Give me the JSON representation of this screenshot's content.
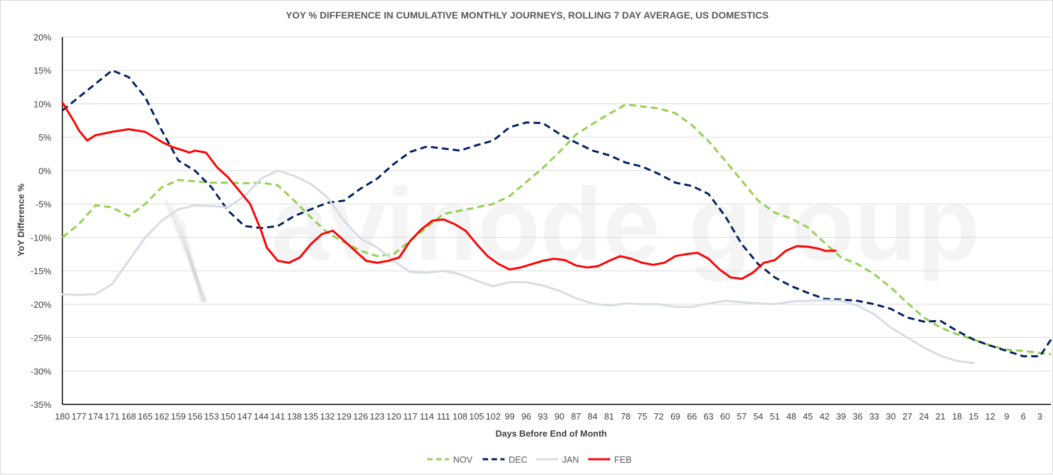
{
  "chart_data": {
    "type": "line",
    "title": "YOY % DIFFERENCE  IN CUMULATIVE MONTHLY JOURNEYS, ROLLING 7 DAY AVERAGE, US DOMESTICS",
    "xlabel": "Days Before End of Month",
    "ylabel": "YoY Difference %",
    "xlim": [
      180,
      1
    ],
    "ylim": [
      -35,
      20
    ],
    "y_ticks": [
      20,
      15,
      10,
      5,
      0,
      -5,
      -10,
      -15,
      -20,
      -25,
      -30,
      -35
    ],
    "y_tick_labels": [
      "20%",
      "15%",
      "10%",
      "5%",
      "0%",
      "-5%",
      "-10%",
      "-15%",
      "-20%",
      "-25%",
      "-30%",
      "-35%"
    ],
    "x_tick_labels": [
      "180",
      "177",
      "174",
      "171",
      "168",
      "165",
      "162",
      "159",
      "156",
      "153",
      "150",
      "147",
      "144",
      "141",
      "138",
      "135",
      "132",
      "129",
      "126",
      "123",
      "120",
      "117",
      "114",
      "111",
      "108",
      "105",
      "102",
      "99",
      "96",
      "93",
      "90",
      "87",
      "84",
      "81",
      "78",
      "75",
      "72",
      "69",
      "66",
      "63",
      "60",
      "57",
      "54",
      "51",
      "48",
      "45",
      "42",
      "39",
      "36",
      "33",
      "30",
      "27",
      "24",
      "21",
      "18",
      "15",
      "12",
      "9",
      "6",
      "3"
    ],
    "grid": "horizontal",
    "legend_position": "bottom",
    "watermark": "avinode group",
    "colors": {
      "NOV": "#92d050",
      "DEC": "#002060",
      "JAN": "#d6dce5",
      "FEB": "#ff0000"
    },
    "series": [
      {
        "name": "NOV",
        "style": "dashed",
        "points": [
          [
            180,
            -10
          ],
          [
            177,
            -8
          ],
          [
            174,
            -5.2
          ],
          [
            171,
            -5.5
          ],
          [
            168,
            -6.8
          ],
          [
            165,
            -5
          ],
          [
            162,
            -2.5
          ],
          [
            159,
            -1.4
          ],
          [
            156,
            -1.6
          ],
          [
            153,
            -1.8
          ],
          [
            150,
            -1.8
          ],
          [
            147,
            -1.9
          ],
          [
            144,
            -1.8
          ],
          [
            141,
            -2.2
          ],
          [
            138,
            -4.5
          ],
          [
            135,
            -7
          ],
          [
            132,
            -9.3
          ],
          [
            129,
            -10.7
          ],
          [
            126,
            -12
          ],
          [
            123,
            -12.8
          ],
          [
            120,
            -12.5
          ],
          [
            117,
            -10.5
          ],
          [
            114,
            -8.5
          ],
          [
            111,
            -6.5
          ],
          [
            108,
            -6
          ],
          [
            105,
            -5.5
          ],
          [
            102,
            -5
          ],
          [
            99,
            -3.8
          ],
          [
            96,
            -1.7
          ],
          [
            93,
            0.4
          ],
          [
            90,
            2.8
          ],
          [
            87,
            5.4
          ],
          [
            84,
            7
          ],
          [
            81,
            8.5
          ],
          [
            78,
            9.9
          ],
          [
            75,
            9.6
          ],
          [
            72,
            9.3
          ],
          [
            69,
            8.6
          ],
          [
            66,
            6.8
          ],
          [
            63,
            4.4
          ],
          [
            60,
            1.5
          ],
          [
            57,
            -1.5
          ],
          [
            54,
            -4.5
          ],
          [
            51,
            -6.3
          ],
          [
            48,
            -7.2
          ],
          [
            45,
            -8.5
          ],
          [
            42,
            -10.8
          ],
          [
            39,
            -13
          ],
          [
            36,
            -14
          ],
          [
            33,
            -15.5
          ],
          [
            30,
            -17.5
          ],
          [
            27,
            -19.8
          ],
          [
            24,
            -22
          ],
          [
            21,
            -23.5
          ],
          [
            18,
            -24.5
          ],
          [
            15,
            -25.3
          ],
          [
            12,
            -26.2
          ],
          [
            9,
            -26.8
          ],
          [
            6,
            -27
          ],
          [
            3,
            -27.3
          ],
          [
            1,
            -27.5
          ]
        ]
      },
      {
        "name": "DEC",
        "style": "dashed",
        "points": [
          [
            180,
            9
          ],
          [
            177,
            11
          ],
          [
            174,
            13
          ],
          [
            171,
            15
          ],
          [
            168,
            14
          ],
          [
            165,
            11
          ],
          [
            162,
            6
          ],
          [
            159,
            1.5
          ],
          [
            156,
            0
          ],
          [
            153,
            -2.5
          ],
          [
            150,
            -6
          ],
          [
            147,
            -8.3
          ],
          [
            144,
            -8.6
          ],
          [
            141,
            -8.3
          ],
          [
            138,
            -6.8
          ],
          [
            135,
            -5.8
          ],
          [
            132,
            -4.8
          ],
          [
            129,
            -4.5
          ],
          [
            126,
            -2.7
          ],
          [
            123,
            -1.2
          ],
          [
            120,
            1
          ],
          [
            117,
            2.8
          ],
          [
            114,
            3.6
          ],
          [
            111,
            3.3
          ],
          [
            108,
            3
          ],
          [
            105,
            3.8
          ],
          [
            102,
            4.5
          ],
          [
            99,
            6.5
          ],
          [
            96,
            7.2
          ],
          [
            93,
            7.1
          ],
          [
            90,
            5.5
          ],
          [
            87,
            4.2
          ],
          [
            84,
            3
          ],
          [
            81,
            2.3
          ],
          [
            78,
            1.2
          ],
          [
            75,
            0.6
          ],
          [
            72,
            -0.5
          ],
          [
            69,
            -1.8
          ],
          [
            66,
            -2.3
          ],
          [
            63,
            -3.5
          ],
          [
            60,
            -6.8
          ],
          [
            57,
            -11
          ],
          [
            54,
            -14
          ],
          [
            51,
            -16
          ],
          [
            48,
            -17.3
          ],
          [
            45,
            -18.3
          ],
          [
            42,
            -19.2
          ],
          [
            39,
            -19.3
          ],
          [
            36,
            -19.5
          ],
          [
            33,
            -20
          ],
          [
            30,
            -20.7
          ],
          [
            27,
            -22
          ],
          [
            24,
            -22.6
          ],
          [
            21,
            -22.5
          ],
          [
            18,
            -24
          ],
          [
            15,
            -25.3
          ],
          [
            12,
            -26.2
          ],
          [
            9,
            -27
          ],
          [
            6,
            -27.8
          ],
          [
            3,
            -27.8
          ],
          [
            1,
            -25.3
          ]
        ]
      },
      {
        "name": "JAN",
        "style": "solid",
        "points": [
          [
            180,
            -18.5
          ],
          [
            177,
            -18.6
          ],
          [
            174,
            -18.5
          ],
          [
            171,
            -17
          ],
          [
            168,
            -13.5
          ],
          [
            165,
            -10
          ],
          [
            162,
            -7.5
          ],
          [
            159,
            -5.8
          ],
          [
            156,
            -5.2
          ],
          [
            153,
            -5.3
          ],
          [
            150,
            -5.5
          ],
          [
            147,
            -3.8
          ],
          [
            144,
            -1.2
          ],
          [
            141,
            0
          ],
          [
            138,
            -0.8
          ],
          [
            135,
            -2
          ],
          [
            132,
            -4
          ],
          [
            129,
            -7.5
          ],
          [
            126,
            -10.2
          ],
          [
            123,
            -11.5
          ],
          [
            120,
            -13.5
          ],
          [
            117,
            -15.2
          ],
          [
            114,
            -15.3
          ],
          [
            111,
            -15
          ],
          [
            108,
            -15.5
          ],
          [
            105,
            -16.5
          ],
          [
            102,
            -17.3
          ],
          [
            99,
            -16.7
          ],
          [
            96,
            -16.7
          ],
          [
            93,
            -17.2
          ],
          [
            90,
            -18
          ],
          [
            87,
            -19.1
          ],
          [
            84,
            -19.9
          ],
          [
            81,
            -20.2
          ],
          [
            78,
            -19.9
          ],
          [
            75,
            -20
          ],
          [
            72,
            -20
          ],
          [
            69,
            -20.4
          ],
          [
            66,
            -20.4
          ],
          [
            63,
            -19.9
          ],
          [
            60,
            -19.5
          ],
          [
            57,
            -19.7
          ],
          [
            54,
            -19.9
          ],
          [
            51,
            -20
          ],
          [
            48,
            -19.6
          ],
          [
            45,
            -19.5
          ],
          [
            42,
            -19.4
          ],
          [
            39,
            -19.5
          ],
          [
            36,
            -20.2
          ],
          [
            33,
            -21.5
          ],
          [
            30,
            -23.5
          ],
          [
            27,
            -25
          ],
          [
            24,
            -26.5
          ],
          [
            21,
            -27.7
          ],
          [
            18,
            -28.5
          ],
          [
            15,
            -28.8
          ]
        ]
      },
      {
        "name": "FEB",
        "style": "solid",
        "points": [
          [
            180,
            10.2
          ],
          [
            178,
            7.5
          ],
          [
            177,
            6
          ],
          [
            175.5,
            4.5
          ],
          [
            174,
            5.3
          ],
          [
            171,
            5.8
          ],
          [
            168,
            6.2
          ],
          [
            165,
            5.8
          ],
          [
            162,
            4.3
          ],
          [
            160,
            3.5
          ],
          [
            158,
            3
          ],
          [
            157,
            2.7
          ],
          [
            156,
            3
          ],
          [
            154,
            2.7
          ],
          [
            152,
            0.5
          ],
          [
            150,
            -1
          ],
          [
            148,
            -3
          ],
          [
            146,
            -5
          ],
          [
            144,
            -9
          ],
          [
            143,
            -11.5
          ],
          [
            141,
            -13.5
          ],
          [
            139,
            -13.8
          ],
          [
            137,
            -13
          ],
          [
            135,
            -11
          ],
          [
            133,
            -9.5
          ],
          [
            131,
            -9
          ],
          [
            129,
            -10.5
          ],
          [
            127,
            -12
          ],
          [
            125,
            -13.5
          ],
          [
            123,
            -13.8
          ],
          [
            121,
            -13.5
          ],
          [
            119,
            -13
          ],
          [
            117,
            -10.5
          ],
          [
            115,
            -8.8
          ],
          [
            113,
            -7.5
          ],
          [
            111,
            -7.3
          ],
          [
            109,
            -8
          ],
          [
            107,
            -9
          ],
          [
            105,
            -11
          ],
          [
            103,
            -12.8
          ],
          [
            101,
            -14
          ],
          [
            99,
            -14.8
          ],
          [
            97,
            -14.5
          ],
          [
            95,
            -14
          ],
          [
            93,
            -13.5
          ],
          [
            91,
            -13.2
          ],
          [
            89,
            -13.4
          ],
          [
            87,
            -14.2
          ],
          [
            85,
            -14.5
          ],
          [
            83,
            -14.3
          ],
          [
            81,
            -13.5
          ],
          [
            79,
            -12.8
          ],
          [
            77,
            -13.2
          ],
          [
            75,
            -13.8
          ],
          [
            73,
            -14.1
          ],
          [
            71,
            -13.8
          ],
          [
            69,
            -12.8
          ],
          [
            67,
            -12.5
          ],
          [
            65,
            -12.3
          ],
          [
            63,
            -13.2
          ],
          [
            61,
            -14.8
          ],
          [
            59,
            -16
          ],
          [
            57,
            -16.2
          ],
          [
            55,
            -15.3
          ],
          [
            53,
            -13.8
          ],
          [
            51,
            -13.4
          ],
          [
            49,
            -12
          ],
          [
            47,
            -11.3
          ],
          [
            45,
            -11.4
          ],
          [
            43,
            -11.7
          ],
          [
            42,
            -12
          ],
          [
            40,
            -12
          ]
        ]
      }
    ]
  }
}
